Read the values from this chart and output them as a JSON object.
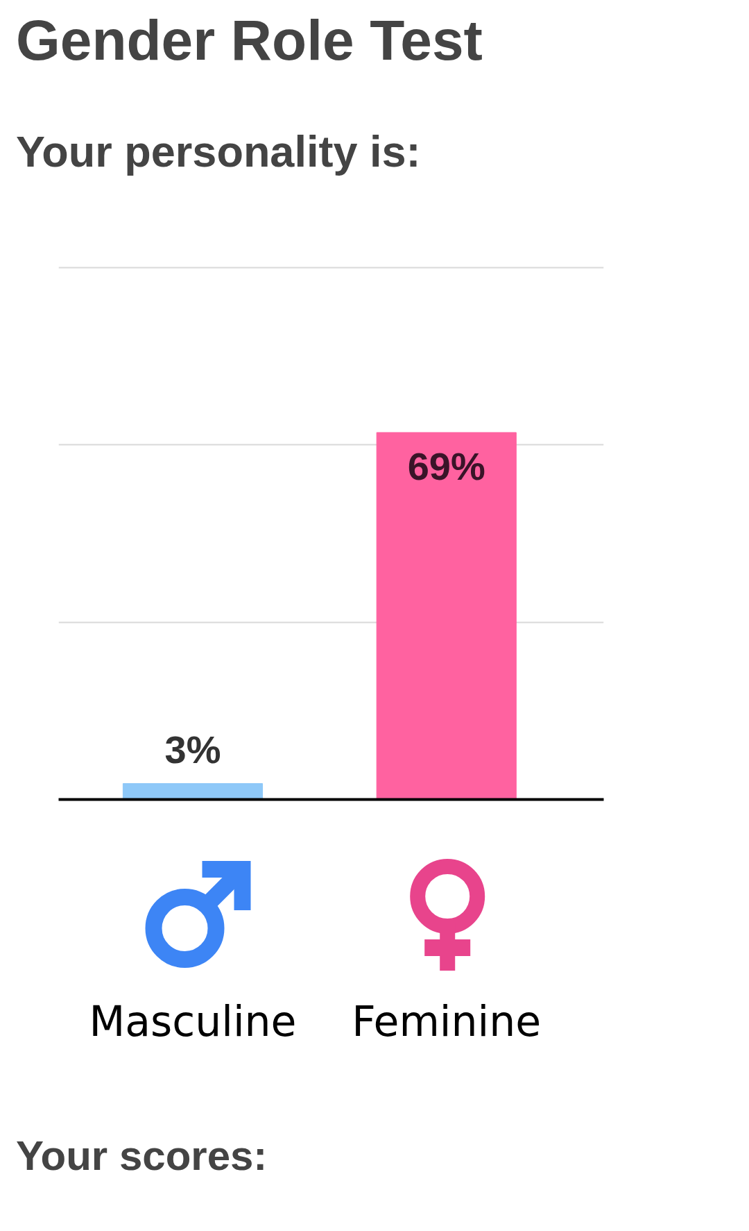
{
  "chart_data": {
    "type": "bar",
    "title": "Gender Role Test",
    "subtitle": "Your personality is:",
    "categories": [
      "Masculine",
      "Feminine"
    ],
    "values": [
      3,
      69
    ],
    "colors": [
      "#8ec8f8",
      "#ff62a0"
    ],
    "value_labels": [
      "3%",
      "69%"
    ],
    "ylim": [
      0,
      100
    ],
    "yticks": [
      {
        "value": 33.3,
        "label": null
      },
      {
        "value": 66.7,
        "label": null
      },
      {
        "value": 100,
        "label": null
      }
    ],
    "grid": "y",
    "tick_labels": "x",
    "annotations": [
      "Your scores:"
    ]
  }
}
